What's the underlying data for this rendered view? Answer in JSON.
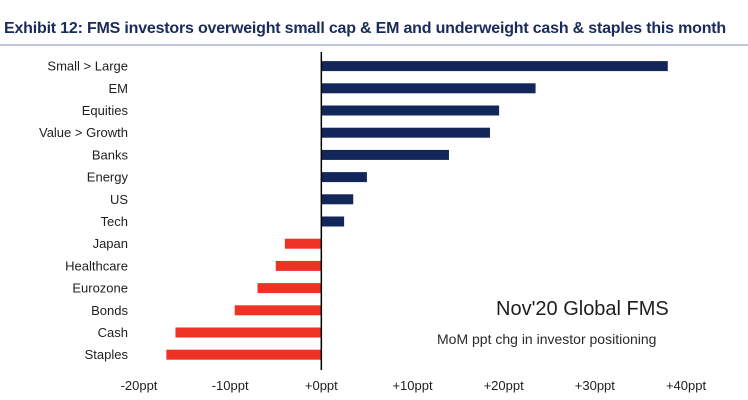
{
  "chart_data": {
    "type": "bar",
    "orientation": "horizontal",
    "title": "Exhibit 12: FMS investors overweight small cap & EM and underweight cash & staples this month",
    "categories": [
      "Small > Large",
      "EM",
      "Equities",
      "Value > Growth",
      "Banks",
      "Energy",
      "US",
      "Tech",
      "Japan",
      "Healthcare",
      "Eurozone",
      "Bonds",
      "Cash",
      "Staples"
    ],
    "values": [
      38,
      23.5,
      19.5,
      18.5,
      14,
      5,
      3.5,
      2.5,
      -4,
      -5,
      -7,
      -9.5,
      -16,
      -17
    ],
    "xlim": [
      -20,
      40
    ],
    "xticks": [
      -20,
      -10,
      0,
      10,
      20,
      30,
      40
    ],
    "xtick_labels": [
      "-20ppt",
      "-10ppt",
      "+0ppt",
      "+10ppt",
      "+20ppt",
      "+30ppt",
      "+40ppt"
    ],
    "annotation_title": "Nov'20 Global FMS",
    "annotation_subtitle": "MoM ppt chg in investor positioning",
    "colors": {
      "positive": "#13265a",
      "negative": "#ee3224",
      "axis": "#000000"
    }
  }
}
